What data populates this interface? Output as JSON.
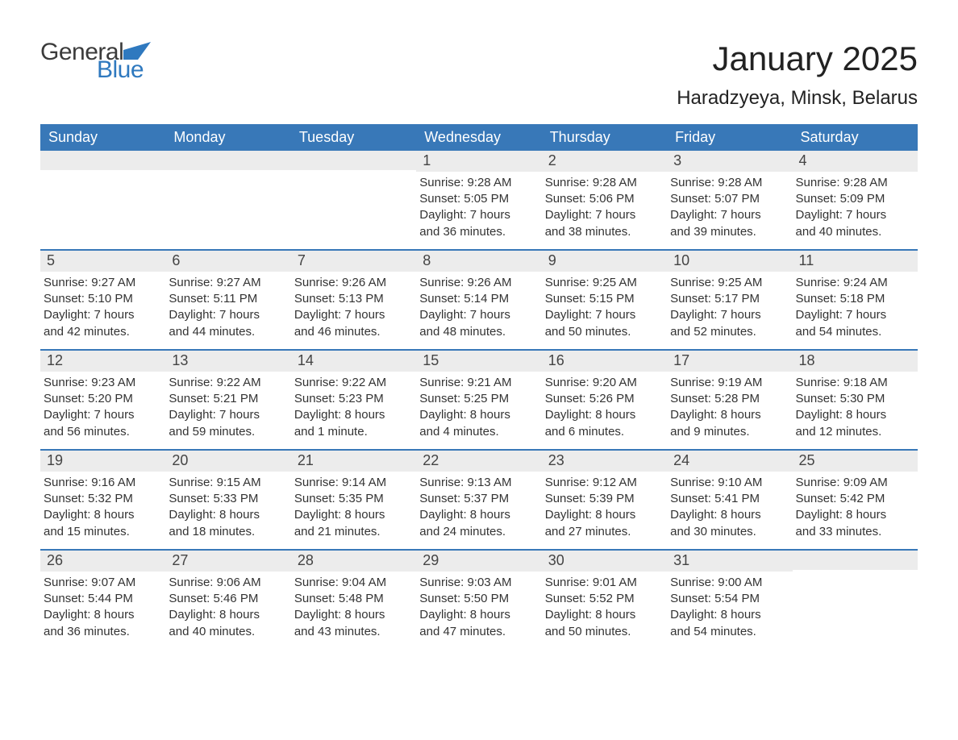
{
  "logo": {
    "part1": "General",
    "part2": "Blue"
  },
  "title": "January 2025",
  "location": "Haradzyeya, Minsk, Belarus",
  "colors": {
    "header_bg": "#3878b8",
    "header_text": "#ffffff",
    "daynum_bg": "#ececec",
    "border": "#3878b8",
    "logo_accent": "#2f79bf",
    "body_text": "#333333",
    "page_bg": "#ffffff"
  },
  "weekdays": [
    "Sunday",
    "Monday",
    "Tuesday",
    "Wednesday",
    "Thursday",
    "Friday",
    "Saturday"
  ],
  "weeks": [
    [
      {
        "n": "",
        "sunrise": "",
        "sunset": "",
        "daylight1": "",
        "daylight2": ""
      },
      {
        "n": "",
        "sunrise": "",
        "sunset": "",
        "daylight1": "",
        "daylight2": ""
      },
      {
        "n": "",
        "sunrise": "",
        "sunset": "",
        "daylight1": "",
        "daylight2": ""
      },
      {
        "n": "1",
        "sunrise": "Sunrise: 9:28 AM",
        "sunset": "Sunset: 5:05 PM",
        "daylight1": "Daylight: 7 hours",
        "daylight2": "and 36 minutes."
      },
      {
        "n": "2",
        "sunrise": "Sunrise: 9:28 AM",
        "sunset": "Sunset: 5:06 PM",
        "daylight1": "Daylight: 7 hours",
        "daylight2": "and 38 minutes."
      },
      {
        "n": "3",
        "sunrise": "Sunrise: 9:28 AM",
        "sunset": "Sunset: 5:07 PM",
        "daylight1": "Daylight: 7 hours",
        "daylight2": "and 39 minutes."
      },
      {
        "n": "4",
        "sunrise": "Sunrise: 9:28 AM",
        "sunset": "Sunset: 5:09 PM",
        "daylight1": "Daylight: 7 hours",
        "daylight2": "and 40 minutes."
      }
    ],
    [
      {
        "n": "5",
        "sunrise": "Sunrise: 9:27 AM",
        "sunset": "Sunset: 5:10 PM",
        "daylight1": "Daylight: 7 hours",
        "daylight2": "and 42 minutes."
      },
      {
        "n": "6",
        "sunrise": "Sunrise: 9:27 AM",
        "sunset": "Sunset: 5:11 PM",
        "daylight1": "Daylight: 7 hours",
        "daylight2": "and 44 minutes."
      },
      {
        "n": "7",
        "sunrise": "Sunrise: 9:26 AM",
        "sunset": "Sunset: 5:13 PM",
        "daylight1": "Daylight: 7 hours",
        "daylight2": "and 46 minutes."
      },
      {
        "n": "8",
        "sunrise": "Sunrise: 9:26 AM",
        "sunset": "Sunset: 5:14 PM",
        "daylight1": "Daylight: 7 hours",
        "daylight2": "and 48 minutes."
      },
      {
        "n": "9",
        "sunrise": "Sunrise: 9:25 AM",
        "sunset": "Sunset: 5:15 PM",
        "daylight1": "Daylight: 7 hours",
        "daylight2": "and 50 minutes."
      },
      {
        "n": "10",
        "sunrise": "Sunrise: 9:25 AM",
        "sunset": "Sunset: 5:17 PM",
        "daylight1": "Daylight: 7 hours",
        "daylight2": "and 52 minutes."
      },
      {
        "n": "11",
        "sunrise": "Sunrise: 9:24 AM",
        "sunset": "Sunset: 5:18 PM",
        "daylight1": "Daylight: 7 hours",
        "daylight2": "and 54 minutes."
      }
    ],
    [
      {
        "n": "12",
        "sunrise": "Sunrise: 9:23 AM",
        "sunset": "Sunset: 5:20 PM",
        "daylight1": "Daylight: 7 hours",
        "daylight2": "and 56 minutes."
      },
      {
        "n": "13",
        "sunrise": "Sunrise: 9:22 AM",
        "sunset": "Sunset: 5:21 PM",
        "daylight1": "Daylight: 7 hours",
        "daylight2": "and 59 minutes."
      },
      {
        "n": "14",
        "sunrise": "Sunrise: 9:22 AM",
        "sunset": "Sunset: 5:23 PM",
        "daylight1": "Daylight: 8 hours",
        "daylight2": "and 1 minute."
      },
      {
        "n": "15",
        "sunrise": "Sunrise: 9:21 AM",
        "sunset": "Sunset: 5:25 PM",
        "daylight1": "Daylight: 8 hours",
        "daylight2": "and 4 minutes."
      },
      {
        "n": "16",
        "sunrise": "Sunrise: 9:20 AM",
        "sunset": "Sunset: 5:26 PM",
        "daylight1": "Daylight: 8 hours",
        "daylight2": "and 6 minutes."
      },
      {
        "n": "17",
        "sunrise": "Sunrise: 9:19 AM",
        "sunset": "Sunset: 5:28 PM",
        "daylight1": "Daylight: 8 hours",
        "daylight2": "and 9 minutes."
      },
      {
        "n": "18",
        "sunrise": "Sunrise: 9:18 AM",
        "sunset": "Sunset: 5:30 PM",
        "daylight1": "Daylight: 8 hours",
        "daylight2": "and 12 minutes."
      }
    ],
    [
      {
        "n": "19",
        "sunrise": "Sunrise: 9:16 AM",
        "sunset": "Sunset: 5:32 PM",
        "daylight1": "Daylight: 8 hours",
        "daylight2": "and 15 minutes."
      },
      {
        "n": "20",
        "sunrise": "Sunrise: 9:15 AM",
        "sunset": "Sunset: 5:33 PM",
        "daylight1": "Daylight: 8 hours",
        "daylight2": "and 18 minutes."
      },
      {
        "n": "21",
        "sunrise": "Sunrise: 9:14 AM",
        "sunset": "Sunset: 5:35 PM",
        "daylight1": "Daylight: 8 hours",
        "daylight2": "and 21 minutes."
      },
      {
        "n": "22",
        "sunrise": "Sunrise: 9:13 AM",
        "sunset": "Sunset: 5:37 PM",
        "daylight1": "Daylight: 8 hours",
        "daylight2": "and 24 minutes."
      },
      {
        "n": "23",
        "sunrise": "Sunrise: 9:12 AM",
        "sunset": "Sunset: 5:39 PM",
        "daylight1": "Daylight: 8 hours",
        "daylight2": "and 27 minutes."
      },
      {
        "n": "24",
        "sunrise": "Sunrise: 9:10 AM",
        "sunset": "Sunset: 5:41 PM",
        "daylight1": "Daylight: 8 hours",
        "daylight2": "and 30 minutes."
      },
      {
        "n": "25",
        "sunrise": "Sunrise: 9:09 AM",
        "sunset": "Sunset: 5:42 PM",
        "daylight1": "Daylight: 8 hours",
        "daylight2": "and 33 minutes."
      }
    ],
    [
      {
        "n": "26",
        "sunrise": "Sunrise: 9:07 AM",
        "sunset": "Sunset: 5:44 PM",
        "daylight1": "Daylight: 8 hours",
        "daylight2": "and 36 minutes."
      },
      {
        "n": "27",
        "sunrise": "Sunrise: 9:06 AM",
        "sunset": "Sunset: 5:46 PM",
        "daylight1": "Daylight: 8 hours",
        "daylight2": "and 40 minutes."
      },
      {
        "n": "28",
        "sunrise": "Sunrise: 9:04 AM",
        "sunset": "Sunset: 5:48 PM",
        "daylight1": "Daylight: 8 hours",
        "daylight2": "and 43 minutes."
      },
      {
        "n": "29",
        "sunrise": "Sunrise: 9:03 AM",
        "sunset": "Sunset: 5:50 PM",
        "daylight1": "Daylight: 8 hours",
        "daylight2": "and 47 minutes."
      },
      {
        "n": "30",
        "sunrise": "Sunrise: 9:01 AM",
        "sunset": "Sunset: 5:52 PM",
        "daylight1": "Daylight: 8 hours",
        "daylight2": "and 50 minutes."
      },
      {
        "n": "31",
        "sunrise": "Sunrise: 9:00 AM",
        "sunset": "Sunset: 5:54 PM",
        "daylight1": "Daylight: 8 hours",
        "daylight2": "and 54 minutes."
      },
      {
        "n": "",
        "sunrise": "",
        "sunset": "",
        "daylight1": "",
        "daylight2": ""
      }
    ]
  ]
}
